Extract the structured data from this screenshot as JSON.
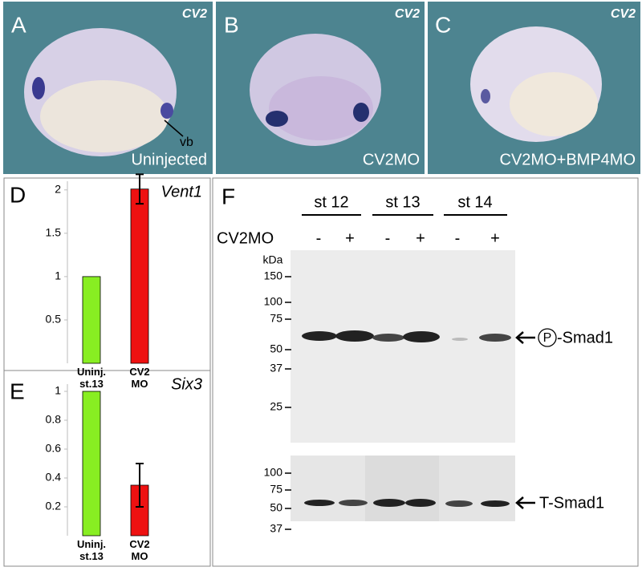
{
  "images": [
    {
      "label": "A",
      "gene": "CV2",
      "caption": "Uninjected",
      "annotation": "vb"
    },
    {
      "label": "B",
      "gene": "CV2",
      "caption": "CV2MO"
    },
    {
      "label": "C",
      "gene": "CV2",
      "caption": "CV2MO+BMP4MO"
    }
  ],
  "chart_data": [
    {
      "type": "bar",
      "panel": "D",
      "title": "Vent1",
      "categories": [
        "Uninj. st.13",
        "CV2 MO"
      ],
      "values": [
        1,
        2.01
      ],
      "errors": [
        null,
        0.17
      ],
      "colors": [
        "#88ee22",
        "#ee1111"
      ],
      "ylim": [
        0,
        2.1
      ],
      "yticks": [
        0.5,
        1,
        1.5,
        2
      ],
      "grid": false
    },
    {
      "type": "bar",
      "panel": "E",
      "title": "Six3",
      "categories": [
        "Uninj. st.13",
        "CV2 MO"
      ],
      "values": [
        1,
        0.35
      ],
      "errors": [
        null,
        0.15
      ],
      "colors": [
        "#88ee22",
        "#ee1111"
      ],
      "ylim": [
        0,
        1.05
      ],
      "yticks": [
        0.2,
        0.4,
        0.6,
        0.8,
        1
      ],
      "grid": false
    }
  ],
  "blot": {
    "panel": "F",
    "stages": [
      "st 12",
      "st 13",
      "st 14"
    ],
    "treatment": "CV2MO",
    "lanes": [
      "-",
      "+",
      "-",
      "+",
      "-",
      "+"
    ],
    "unit": "kDa",
    "top_markers": [
      "150",
      "100",
      "75",
      "50",
      "37",
      "25"
    ],
    "bottom_markers": [
      "100",
      "75",
      "50",
      "37"
    ],
    "top_band": {
      "phospho": "P",
      "name": "-Smad1"
    },
    "bottom_band": "T-Smad1"
  }
}
